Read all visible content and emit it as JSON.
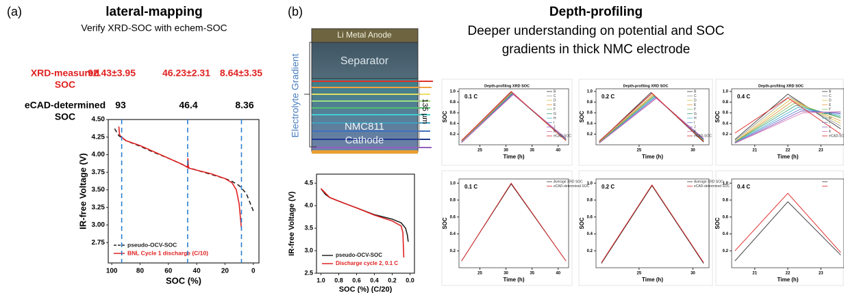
{
  "panel_a": {
    "label": "(a)",
    "title": "lateral-mapping",
    "subtitle": "Verify XRD-SOC with echem-SOC",
    "xrd_label": [
      "XRD-measured",
      "SOC"
    ],
    "xrd_values": [
      "92.43±3.95",
      "46.23±2.31",
      "8.64±3.35"
    ],
    "ecad_label": [
      "eCAD-determined",
      "SOC"
    ],
    "ecad_values": [
      93,
      46.4,
      8.36
    ]
  },
  "panel_b": {
    "label": "(b)",
    "title": "Depth-profiling",
    "subtitle": [
      "Deeper understanding on potential and SOC",
      "gradients in thick NMC electrode"
    ]
  },
  "diagram": {
    "anode": "Li Metal Anode",
    "separator": "Separator",
    "cathode": [
      "NMC811",
      "Cathode"
    ],
    "gradient_label": "Electrolyte Gradient",
    "thickness": "135 µm"
  },
  "chart_data": [
    {
      "type": "line",
      "xlabel": "SOC (%)",
      "ylabel": "IR-free Voltage (V)",
      "xlim": [
        102.5,
        -4
      ],
      "ylim": [
        2.46,
        4.5
      ],
      "xticks": [
        100,
        80,
        60,
        40,
        20,
        0
      ],
      "yticks": [
        2.75,
        {
          "value": 3,
          "label": "3.00"
        },
        3.25,
        {
          "value": 3.5,
          "label": "3.50"
        },
        3.75,
        {
          "value": 4,
          "label": "4.00"
        },
        4.25,
        {
          "value": 4.5,
          "label": "4.50"
        }
      ],
      "legend": "lower left",
      "legend_text_colored": true,
      "series": [
        {
          "name": "pseudo-OCV-SOC",
          "color": "#222222",
          "line_style": "dashed",
          "x": [
            98,
            95,
            90,
            80,
            70,
            60,
            50,
            45,
            40,
            30,
            20,
            15,
            10,
            5,
            2,
            0
          ],
          "values": [
            4.37,
            4.27,
            4.2,
            4.12,
            4.03,
            3.95,
            3.86,
            3.81,
            3.78,
            3.72,
            3.66,
            3.62,
            3.56,
            3.45,
            3.3,
            3.2
          ]
        },
        {
          "name": "BNL Cycle 1 discharge (C/10)",
          "color": "#e02020",
          "x": [
            95,
            94.5,
            93,
            90,
            80,
            70,
            60,
            50,
            46.5,
            46.2,
            45.8,
            40,
            30,
            20,
            15,
            12,
            10,
            8.4
          ],
          "values": [
            4.4,
            4.28,
            4.25,
            4.2,
            4.13,
            4.04,
            3.95,
            3.86,
            3.82,
            3.95,
            3.81,
            3.78,
            3.73,
            3.66,
            3.6,
            3.5,
            3.3,
            2.95
          ]
        }
      ]
    },
    {
      "type": "line",
      "xlabel": "SOC (%) (C/20)",
      "ylabel": "IR-free Voltage (V)",
      "xlim": [
        1.05,
        -0.05
      ],
      "ylim": [
        2.5,
        4.7
      ],
      "xticks": [
        {
          "value": 1,
          "label": "1.0"
        },
        0.8,
        0.6,
        0.4,
        0.2,
        {
          "value": 0,
          "label": "0.0"
        }
      ],
      "yticks": [
        2.5,
        {
          "value": 3,
          "label": "3.0"
        },
        3.5,
        {
          "value": 4,
          "label": "4.0"
        },
        4.5
      ],
      "legend": "lower left",
      "legend_text_colored": true,
      "series": [
        {
          "name": "pseudo-OCV-SOC",
          "color": "#222222",
          "x": [
            1.0,
            0.95,
            0.9,
            0.8,
            0.6,
            0.4,
            0.2,
            0.1,
            0.05,
            0.03,
            0.02
          ],
          "values": [
            4.38,
            4.25,
            4.18,
            4.1,
            3.95,
            3.8,
            3.7,
            3.62,
            3.5,
            3.35,
            3.2
          ]
        },
        {
          "name": "Discharge cycle 2, 0.1 C",
          "color": "#e02020",
          "x": [
            1.0,
            0.9,
            0.8,
            0.6,
            0.4,
            0.2,
            0.1,
            0.08,
            0.07
          ],
          "values": [
            4.38,
            4.18,
            4.1,
            3.95,
            3.79,
            3.66,
            3.55,
            3.4,
            2.85
          ]
        }
      ]
    },
    {
      "type": "line",
      "title": "Depth-profiling XRD SOC",
      "annotation": "0.1 C",
      "xlabel": "Time (h)",
      "ylabel": "SOC",
      "xlim": [
        21,
        42
      ],
      "ylim": [
        0,
        1.05
      ],
      "xticks": [
        25,
        30,
        35,
        40
      ],
      "yticks": [
        0.2,
        0.4,
        0.6,
        0.8,
        {
          "value": 1,
          "label": "1.0"
        }
      ],
      "legend": "upper right",
      "series": [
        {
          "name": "B",
          "color": "#333333",
          "x": [
            21.5,
            31,
            41.5
          ],
          "values": [
            0.08,
            0.99,
            0.08
          ]
        },
        {
          "name": "C",
          "color": "#9a9a9a",
          "x": [
            21.5,
            31,
            41.5
          ],
          "values": [
            0.07,
            0.98,
            0.09
          ]
        },
        {
          "name": "D",
          "color": "#d8c040",
          "x": [
            21.5,
            31.1,
            41.5
          ],
          "values": [
            0.06,
            0.97,
            0.1
          ]
        },
        {
          "name": "E",
          "color": "#e89a40",
          "x": [
            21.5,
            31.1,
            41.5
          ],
          "values": [
            0.06,
            0.98,
            0.08
          ]
        },
        {
          "name": "F",
          "color": "#80c060",
          "x": [
            21.5,
            31.2,
            41.5
          ],
          "values": [
            0.05,
            0.96,
            0.09
          ]
        },
        {
          "name": "G",
          "color": "#40a080",
          "x": [
            21.5,
            31.2,
            41.5
          ],
          "values": [
            0.05,
            0.97,
            0.1
          ]
        },
        {
          "name": "H",
          "color": "#40b0d0",
          "x": [
            21.5,
            31.3,
            41.5
          ],
          "values": [
            0.05,
            0.95,
            0.1
          ]
        },
        {
          "name": "I",
          "color": "#6080d0",
          "x": [
            21.5,
            31.3,
            41.5
          ],
          "values": [
            0.04,
            0.96,
            0.11
          ]
        },
        {
          "name": "J",
          "color": "#9060c0",
          "x": [
            21.5,
            31.4,
            41.5
          ],
          "values": [
            0.04,
            0.95,
            0.12
          ]
        },
        {
          "name": "K",
          "color": "#d070b0",
          "x": [
            21.5,
            31.4,
            41.5
          ],
          "values": [
            0.04,
            0.94,
            0.12
          ]
        },
        {
          "name": "eCAD-SOC",
          "color": "#e02020",
          "x": [
            21.5,
            31,
            41.5
          ],
          "values": [
            0.08,
            1.0,
            0.08
          ]
        }
      ]
    },
    {
      "type": "line",
      "title": "Depth-profiling XRD SOC",
      "annotation": "0.2 C",
      "xlabel": "Time (h)",
      "ylabel": "SOC",
      "xlim": [
        21,
        31.5
      ],
      "ylim": [
        0,
        1.05
      ],
      "xticks": [
        25,
        30
      ],
      "yticks": [
        0.2,
        0.4,
        0.6,
        0.8,
        {
          "value": 1,
          "label": "1.0"
        }
      ],
      "legend": "upper right",
      "series": [
        {
          "name": "B",
          "color": "#333333",
          "x": [
            21.3,
            26.1,
            31
          ],
          "values": [
            0.06,
            0.98,
            0.05
          ]
        },
        {
          "name": "C",
          "color": "#9a9a9a",
          "x": [
            21.3,
            26.2,
            31
          ],
          "values": [
            0.05,
            0.96,
            0.06
          ]
        },
        {
          "name": "D",
          "color": "#d8c040",
          "x": [
            21.3,
            26.3,
            31
          ],
          "values": [
            0.05,
            0.94,
            0.07
          ]
        },
        {
          "name": "E",
          "color": "#e89a40",
          "x": [
            21.3,
            26.3,
            31
          ],
          "values": [
            0.04,
            0.93,
            0.08
          ]
        },
        {
          "name": "F",
          "color": "#80c060",
          "x": [
            21.3,
            26.4,
            31
          ],
          "values": [
            0.04,
            0.92,
            0.08
          ]
        },
        {
          "name": "G",
          "color": "#40a080",
          "x": [
            21.3,
            26.4,
            31
          ],
          "values": [
            0.04,
            0.91,
            0.09
          ]
        },
        {
          "name": "H",
          "color": "#40b0d0",
          "x": [
            21.3,
            26.5,
            31
          ],
          "values": [
            0.03,
            0.9,
            0.1
          ]
        },
        {
          "name": "I",
          "color": "#6080d0",
          "x": [
            21.3,
            26.5,
            31
          ],
          "values": [
            0.03,
            0.89,
            0.1
          ]
        },
        {
          "name": "J",
          "color": "#9060c0",
          "x": [
            21.3,
            26.6,
            31
          ],
          "values": [
            0.03,
            0.88,
            0.11
          ]
        },
        {
          "name": "K",
          "color": "#d070b0",
          "x": [
            21.3,
            26.6,
            31
          ],
          "values": [
            0.03,
            0.87,
            0.12
          ]
        },
        {
          "name": "eCAD-SOC",
          "color": "#e02020",
          "x": [
            21.3,
            26.2,
            31
          ],
          "values": [
            0.07,
            0.97,
            0.06
          ]
        }
      ]
    },
    {
      "type": "line",
      "title": "Depth-profiling XRD SOC",
      "annotation": "0.4 C",
      "xlabel": "Time (h)",
      "ylabel": "SOC",
      "xlim": [
        20.3,
        23.7
      ],
      "ylim": [
        0,
        1.05
      ],
      "xticks": [
        21,
        22,
        23
      ],
      "yticks": [
        0.2,
        0.4,
        0.6,
        0.8,
        {
          "value": 1,
          "label": "1.0"
        }
      ],
      "legend": "upper right",
      "series": [
        {
          "name": "B",
          "color": "#333333",
          "x": [
            20.4,
            22.0,
            23.6
          ],
          "values": [
            0.1,
            0.95,
            0.3
          ]
        },
        {
          "name": "C",
          "color": "#9a9a9a",
          "x": [
            20.4,
            22.05,
            23.6
          ],
          "values": [
            0.08,
            0.9,
            0.35
          ]
        },
        {
          "name": "D",
          "color": "#d8c040",
          "x": [
            20.4,
            22.1,
            23.6
          ],
          "values": [
            0.06,
            0.86,
            0.4
          ]
        },
        {
          "name": "E",
          "color": "#e89a40",
          "x": [
            20.4,
            22.15,
            23.6
          ],
          "values": [
            0.05,
            0.82,
            0.45
          ]
        },
        {
          "name": "F",
          "color": "#80c060",
          "x": [
            20.4,
            22.2,
            23.6
          ],
          "values": [
            0.05,
            0.78,
            0.5
          ]
        },
        {
          "name": "G",
          "color": "#40a080",
          "x": [
            20.4,
            22.25,
            23.6
          ],
          "values": [
            0.05,
            0.74,
            0.52
          ]
        },
        {
          "name": "H",
          "color": "#40b0d0",
          "x": [
            20.4,
            22.3,
            23.6
          ],
          "values": [
            0.04,
            0.7,
            0.55
          ]
        },
        {
          "name": "I",
          "color": "#6080d0",
          "x": [
            20.4,
            22.35,
            23.6
          ],
          "values": [
            0.04,
            0.66,
            0.58
          ]
        },
        {
          "name": "J",
          "color": "#9060c0",
          "x": [
            20.4,
            22.4,
            23.6
          ],
          "values": [
            0.03,
            0.63,
            0.6
          ]
        },
        {
          "name": "K",
          "color": "#d070b0",
          "x": [
            20.4,
            22.45,
            23.6
          ],
          "values": [
            0.03,
            0.6,
            0.62
          ]
        },
        {
          "name": "eCAD-SOC",
          "color": "#e02020",
          "x": [
            20.4,
            22.0,
            23.6
          ],
          "values": [
            0.22,
            0.88,
            0.2
          ]
        }
      ]
    },
    {
      "type": "line",
      "annotation": "0.1 C",
      "xlabel": "Time (h)",
      "ylabel": "SOC",
      "xlim": [
        21,
        42
      ],
      "ylim": [
        0,
        1.05
      ],
      "xticks": [
        25,
        30,
        35,
        40
      ],
      "yticks": [
        0.2,
        0.4,
        0.6,
        0.8,
        {
          "value": 1,
          "label": "1.0"
        }
      ],
      "legend": "upper right",
      "series": [
        {
          "name": "Average XRD SOC",
          "color": "#333333",
          "x": [
            21.5,
            31,
            41.5
          ],
          "values": [
            0.08,
            0.99,
            0.08
          ]
        },
        {
          "name": "eCAD-determined SOC",
          "color": "#e02020",
          "x": [
            21.5,
            31,
            41.5
          ],
          "values": [
            0.08,
            1.0,
            0.08
          ]
        }
      ]
    },
    {
      "type": "line",
      "annotation": "0.2 C",
      "xlabel": "Time (h)",
      "ylabel": "SOC",
      "xlim": [
        21,
        31.5
      ],
      "ylim": [
        0,
        1.05
      ],
      "xticks": [
        25,
        30
      ],
      "yticks": [
        0.2,
        0.4,
        0.6,
        0.8,
        {
          "value": 1,
          "label": "1.0"
        }
      ],
      "legend": "upper right",
      "series": [
        {
          "name": "Average XRD SOC",
          "color": "#333333",
          "x": [
            21.5,
            26.2,
            31
          ],
          "values": [
            0.05,
            0.97,
            0.05
          ]
        },
        {
          "name": "eCAD-determined SOC",
          "color": "#e02020",
          "x": [
            21.5,
            26.2,
            31
          ],
          "values": [
            0.06,
            0.98,
            0.06
          ]
        }
      ]
    },
    {
      "type": "line",
      "annotation": "0.4 C",
      "xlabel": "Time (h)",
      "ylabel": "SOC",
      "xlim": [
        20.3,
        23.7
      ],
      "ylim": [
        0,
        1.05
      ],
      "xticks": [
        21,
        22,
        23
      ],
      "yticks": [
        0.2,
        0.4,
        0.6,
        0.8,
        {
          "value": 1,
          "label": "1.0"
        }
      ],
      "legend": "upper right",
      "series": [
        {
          "color": "#333333",
          "x": [
            20.4,
            22.0,
            23.6
          ],
          "values": [
            0.08,
            0.78,
            0.15
          ]
        },
        {
          "color": "#e02020",
          "x": [
            20.4,
            22.0,
            23.6
          ],
          "values": [
            0.2,
            0.88,
            0.18
          ]
        }
      ]
    }
  ]
}
